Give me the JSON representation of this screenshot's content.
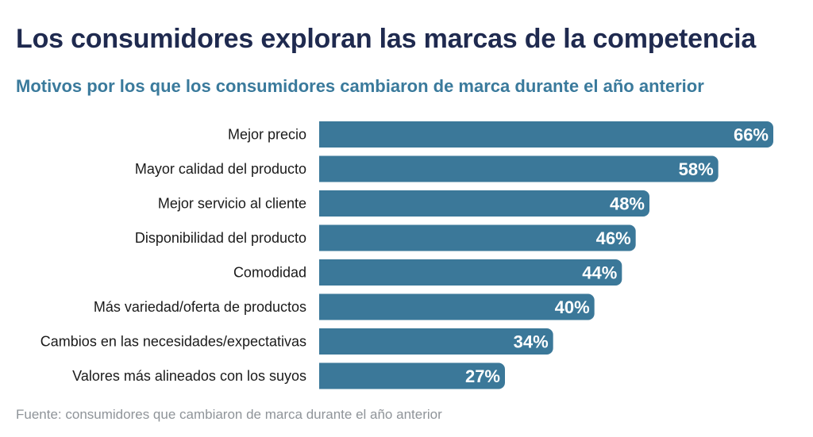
{
  "header": {
    "title": "Los consumidores exploran las marcas de la competencia",
    "subtitle": "Motivos por los que los consumidores cambiaron de marca durante el año anterior"
  },
  "footer": {
    "source": "Fuente: consumidores que cambiaron de marca durante el año anterior"
  },
  "colors": {
    "bar": "#3b7899",
    "title": "#1f2a4f",
    "subtitle": "#3a7a9c",
    "source": "#8f9499"
  },
  "chart_data": {
    "type": "bar",
    "orientation": "horizontal",
    "title": "Los consumidores exploran las marcas de la competencia",
    "subtitle": "Motivos por los que los consumidores cambiaron de marca durante el año anterior",
    "categories": [
      "Mejor precio",
      "Mayor calidad del producto",
      "Mejor servicio al cliente",
      "Disponibilidad del producto",
      "Comodidad",
      "Más variedad/oferta de productos",
      "Cambios en las necesidades/expectativas",
      "Valores más alineados con los suyos"
    ],
    "values": [
      66,
      58,
      48,
      46,
      44,
      40,
      34,
      27
    ],
    "value_labels": [
      "66%",
      "58%",
      "48%",
      "46%",
      "44%",
      "40%",
      "34%",
      "27%"
    ],
    "unit": "%",
    "xlim": [
      0,
      66
    ],
    "grid": false,
    "legend": "none"
  }
}
